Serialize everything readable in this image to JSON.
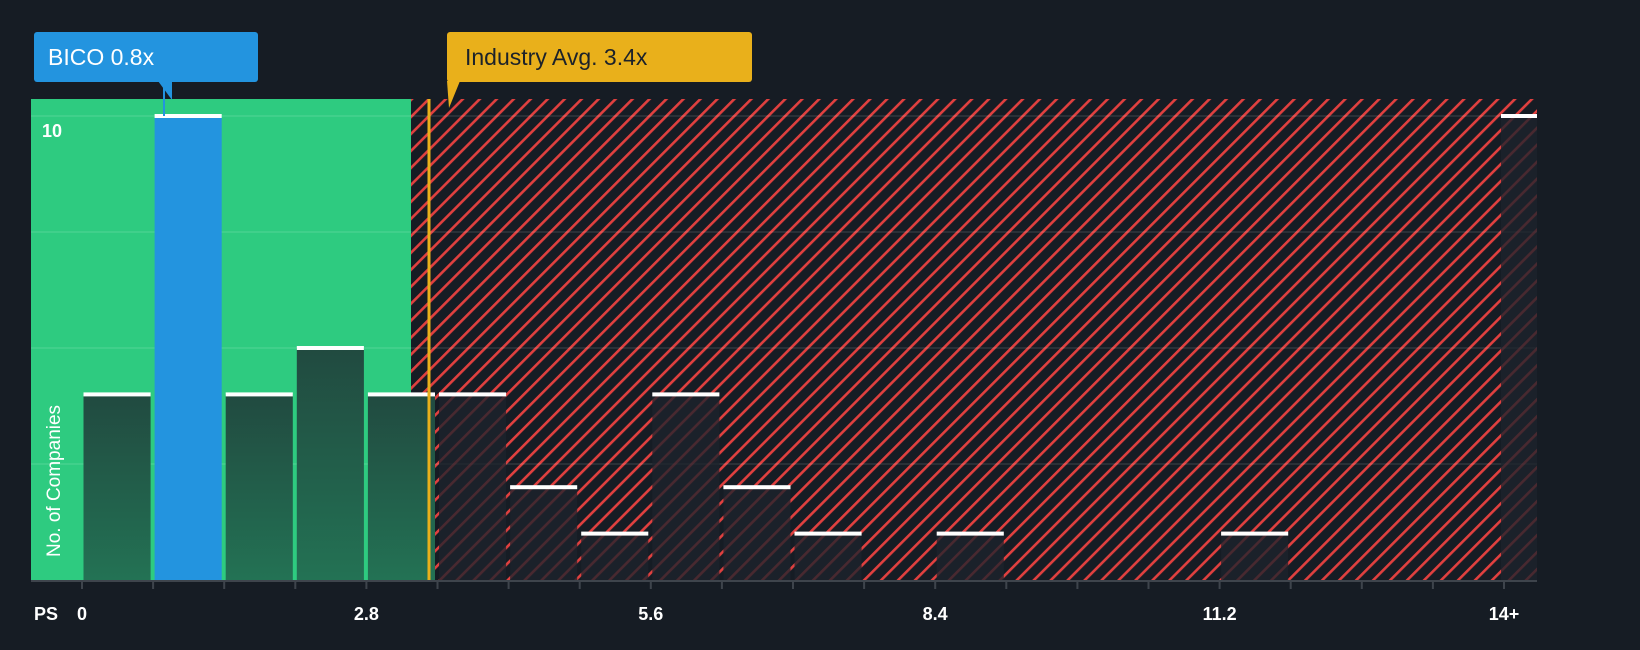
{
  "chart_data": {
    "type": "bar",
    "title": "",
    "xlabel": "PS",
    "ylabel": "No. of Companies",
    "x_tick_labels": [
      "0",
      "2.8",
      "5.6",
      "8.4",
      "11.2",
      "14+"
    ],
    "x_tick_values": [
      0,
      2.8,
      5.6,
      8.4,
      11.2,
      14
    ],
    "y_tick_labels": [
      "10"
    ],
    "ylim": [
      0,
      10.4
    ],
    "xlim": [
      -0.5,
      14.35
    ],
    "grid": true,
    "bin_width": 0.7,
    "bins": [
      {
        "start": 0.0,
        "value": 4
      },
      {
        "start": 0.7,
        "value": 10,
        "highlight": true
      },
      {
        "start": 1.4,
        "value": 4
      },
      {
        "start": 2.1,
        "value": 5
      },
      {
        "start": 2.8,
        "value": 4
      },
      {
        "start": 3.5,
        "value": 4
      },
      {
        "start": 4.2,
        "value": 2
      },
      {
        "start": 4.9,
        "value": 1
      },
      {
        "start": 5.6,
        "value": 4
      },
      {
        "start": 6.3,
        "value": 2
      },
      {
        "start": 7.0,
        "value": 1
      },
      {
        "start": 7.7,
        "value": 0
      },
      {
        "start": 8.4,
        "value": 1
      },
      {
        "start": 9.1,
        "value": 0
      },
      {
        "start": 9.8,
        "value": 0
      },
      {
        "start": 10.5,
        "value": 0
      },
      {
        "start": 11.2,
        "value": 1
      },
      {
        "start": 11.9,
        "value": 0
      },
      {
        "start": 12.6,
        "value": 0
      },
      {
        "start": 13.3,
        "value": 0
      },
      {
        "start": 14.0,
        "value": 10,
        "label": "14+"
      }
    ],
    "annotations": [
      {
        "label": "BICO 0.8x",
        "x": 0.8,
        "color": "#2394df"
      },
      {
        "label": "Industry Avg. 3.4x",
        "x": 3.4,
        "color": "#e9b01b"
      }
    ],
    "fair_zone_end": 3.25
  },
  "colors": {
    "background": "#161c24",
    "green_zone": "#2ecb80",
    "green_bar": "#22684e",
    "highlight_bar": "#2394df",
    "industry": "#e9b01b",
    "hatch": "#e0403f",
    "bar_top": "#ffffff",
    "axis": "#3e444c",
    "text": "#ffffff"
  },
  "callouts": {
    "company": "BICO 0.8x",
    "industry": "Industry Avg. 3.4x"
  },
  "axis": {
    "x_title": "PS",
    "y_title": "No. of Companies",
    "y_top_tick": "10"
  }
}
